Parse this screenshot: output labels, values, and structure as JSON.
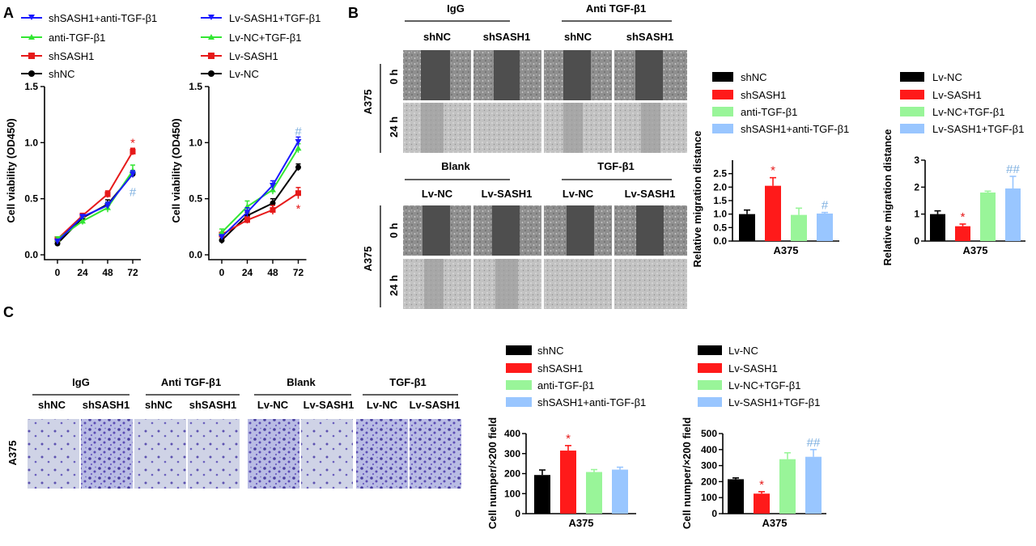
{
  "panels": {
    "A": "A",
    "B": "B",
    "C": "C"
  },
  "legend_a1": [
    {
      "label": "shSASH1+anti-TGF-β1",
      "color": "#1a1aff",
      "marker": "tri-down"
    },
    {
      "label": "anti-TGF-β1",
      "color": "#33e633",
      "marker": "tri-up"
    },
    {
      "label": "shSASH1",
      "color": "#e61a1a",
      "marker": "square"
    },
    {
      "label": "shNC",
      "color": "#000000",
      "marker": "circle"
    }
  ],
  "legend_a2": [
    {
      "label": "Lv-SASH1+TGF-β1",
      "color": "#1a1aff",
      "marker": "tri-down"
    },
    {
      "label": "Lv-NC+TGF-β1",
      "color": "#33e633",
      "marker": "tri-up"
    },
    {
      "label": "Lv-SASH1",
      "color": "#e61a1a",
      "marker": "square"
    },
    {
      "label": "Lv-NC",
      "color": "#000000",
      "marker": "circle"
    }
  ],
  "legend_b1": [
    {
      "label": "shNC",
      "color": "#000000"
    },
    {
      "label": "shSASH1",
      "color": "#ff1a1a"
    },
    {
      "label": "anti-TGF-β1",
      "color": "#99f599"
    },
    {
      "label": "shSASH1+anti-TGF-β1",
      "color": "#99c6ff"
    }
  ],
  "legend_b2": [
    {
      "label": "Lv-NC",
      "color": "#000000"
    },
    {
      "label": "Lv-SASH1",
      "color": "#ff1a1a"
    },
    {
      "label": "Lv-NC+TGF-β1",
      "color": "#99f599"
    },
    {
      "label": "Lv-SASH1+TGF-β1",
      "color": "#99c6ff"
    }
  ],
  "wound_b": {
    "cell_line": "A375",
    "row_labels": [
      "0 h",
      "24 h"
    ],
    "top": {
      "groups": [
        "IgG",
        "Anti TGF-β1"
      ],
      "columns": [
        "shNC",
        "shSASH1",
        "shNC",
        "shSASH1"
      ]
    },
    "bottom": {
      "groups": [
        "Blank",
        "TGF-β1"
      ],
      "columns": [
        "Lv-NC",
        "Lv-SASH1",
        "Lv-NC",
        "Lv-SASH1"
      ]
    }
  },
  "transwell_c": {
    "cell_line": "A375",
    "groups_left": [
      "IgG",
      "Anti TGF-β1"
    ],
    "columns_left": [
      "shNC",
      "shSASH1",
      "shNC",
      "shSASH1"
    ],
    "groups_right": [
      "Blank",
      "TGF-β1"
    ],
    "columns_right": [
      "Lv-NC",
      "Lv-SASH1",
      "Lv-NC",
      "Lv-SASH1"
    ]
  },
  "chart_data": [
    {
      "id": "A1",
      "type": "line",
      "x": [
        0,
        24,
        48,
        72
      ],
      "ylabel": "Cell viability (OD450)",
      "ylim": [
        0,
        1.5
      ],
      "yticks": [
        "0.0",
        "0.5",
        "1.0",
        "1.5"
      ],
      "xticks": [
        "0",
        "24",
        "48",
        "72"
      ],
      "series": [
        {
          "name": "shNC",
          "values": [
            0.1,
            0.33,
            0.45,
            0.72
          ],
          "errors": [
            0.02,
            0.02,
            0.04,
            0.03
          ]
        },
        {
          "name": "shSASH1",
          "values": [
            0.14,
            0.35,
            0.54,
            0.92
          ],
          "errors": [
            0.02,
            0.02,
            0.03,
            0.03
          ]
        },
        {
          "name": "anti-TGF-β1",
          "values": [
            0.14,
            0.3,
            0.42,
            0.75
          ],
          "errors": [
            0.02,
            0.03,
            0.04,
            0.05
          ]
        },
        {
          "name": "shSASH1+anti-TGF-β1",
          "values": [
            0.12,
            0.34,
            0.44,
            0.72
          ],
          "errors": [
            0.02,
            0.02,
            0.03,
            0.03
          ]
        }
      ],
      "annotations": [
        {
          "text": "*",
          "x": 72,
          "y": 1.0,
          "color": "#e61a1a"
        },
        {
          "text": "#",
          "x": 72,
          "y": 0.56,
          "color": "#7fb0e0"
        }
      ]
    },
    {
      "id": "A2",
      "type": "line",
      "x": [
        0,
        24,
        48,
        72
      ],
      "ylabel": "Cell viability (OD450)",
      "ylim": [
        0,
        1.5
      ],
      "yticks": [
        "0.0",
        "0.5",
        "1.0",
        "1.5"
      ],
      "xticks": [
        "0",
        "24",
        "48",
        "72"
      ],
      "series": [
        {
          "name": "Lv-NC",
          "values": [
            0.13,
            0.35,
            0.46,
            0.78
          ],
          "errors": [
            0.03,
            0.03,
            0.04,
            0.03
          ]
        },
        {
          "name": "Lv-SASH1",
          "values": [
            0.18,
            0.31,
            0.4,
            0.55
          ],
          "errors": [
            0.02,
            0.03,
            0.04,
            0.05
          ]
        },
        {
          "name": "Lv-NC+TGF-β1",
          "values": [
            0.2,
            0.43,
            0.58,
            0.95
          ],
          "errors": [
            0.03,
            0.05,
            0.04,
            0.04
          ]
        },
        {
          "name": "Lv-SASH1+TGF-β1",
          "values": [
            0.16,
            0.38,
            0.62,
            1.01
          ],
          "errors": [
            0.02,
            0.04,
            0.04,
            0.04
          ]
        }
      ],
      "annotations": [
        {
          "text": "#",
          "x": 72,
          "y": 1.1,
          "color": "#7fb0e0"
        },
        {
          "text": "*",
          "x": 72,
          "y": 0.41,
          "color": "#e61a1a"
        }
      ]
    },
    {
      "id": "B1",
      "type": "bar",
      "categories": [
        "shNC",
        "shSASH1",
        "anti-TGF-β1",
        "shSASH1+anti-TGF-β1"
      ],
      "values": [
        1.0,
        2.05,
        0.97,
        1.02
      ],
      "errors": [
        0.15,
        0.3,
        0.25,
        0.04
      ],
      "xlabel": "A375",
      "ylabel": "Relative migration distance",
      "ylim": [
        0,
        3
      ],
      "yticks": [
        "0.0",
        "0.5",
        "1.0",
        "1.5",
        "2.0",
        "2.5"
      ],
      "annotations": [
        {
          "bar": 1,
          "text": "*",
          "color": "#e61a1a"
        },
        {
          "bar": 3,
          "text": "#",
          "color": "#7fb0e0"
        }
      ]
    },
    {
      "id": "B2",
      "type": "bar",
      "categories": [
        "Lv-NC",
        "Lv-SASH1",
        "Lv-NC+TGF-β1",
        "Lv-SASH1+TGF-β1"
      ],
      "values": [
        1.0,
        0.55,
        1.8,
        1.95
      ],
      "errors": [
        0.12,
        0.08,
        0.05,
        0.45
      ],
      "xlabel": "A375",
      "ylabel": "Relative migration distance",
      "ylim": [
        0,
        3
      ],
      "yticks": [
        "0",
        "1",
        "2",
        "3"
      ],
      "annotations": [
        {
          "bar": 1,
          "text": "*",
          "color": "#e61a1a"
        },
        {
          "bar": 3,
          "text": "##",
          "color": "#7fb0e0"
        }
      ]
    },
    {
      "id": "C1",
      "type": "bar",
      "categories": [
        "shNC",
        "shSASH1",
        "anti-TGF-β1",
        "shSASH1+anti-TGF-β1"
      ],
      "values": [
        193,
        315,
        208,
        220
      ],
      "errors": [
        25,
        25,
        12,
        12
      ],
      "xlabel": "A375",
      "ylabel": "Cell numper/×200 field",
      "ylim": [
        0,
        400
      ],
      "yticks": [
        "0",
        "100",
        "200",
        "300",
        "400"
      ],
      "annotations": [
        {
          "bar": 1,
          "text": "*",
          "color": "#e61a1a"
        }
      ]
    },
    {
      "id": "C2",
      "type": "bar",
      "categories": [
        "Lv-NC",
        "Lv-SASH1",
        "Lv-NC+TGF-β1",
        "Lv-SASH1+TGF-β1"
      ],
      "values": [
        215,
        125,
        340,
        355
      ],
      "errors": [
        8,
        12,
        40,
        45
      ],
      "xlabel": "A375",
      "ylabel": "Cell numper/×200 field",
      "ylim": [
        0,
        500
      ],
      "yticks": [
        "0",
        "100",
        "200",
        "300",
        "400",
        "500"
      ],
      "annotations": [
        {
          "bar": 1,
          "text": "*",
          "color": "#e61a1a"
        },
        {
          "bar": 3,
          "text": "##",
          "color": "#7fb0e0"
        }
      ]
    }
  ]
}
